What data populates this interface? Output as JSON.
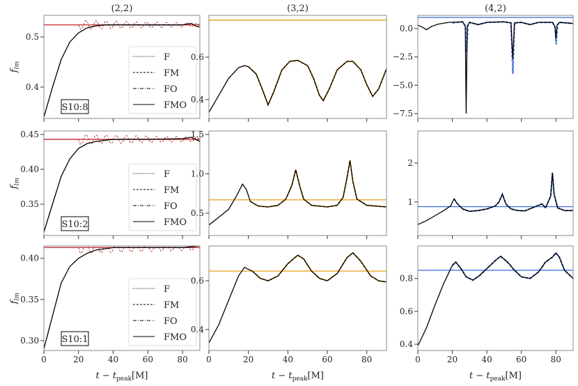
{
  "chart_data": {
    "type": "line",
    "xlabel": "t − t_peak[M]",
    "ylabel": "f_lm",
    "xlim": [
      0,
      90
    ],
    "xticks": [
      0,
      20,
      40,
      60,
      80
    ],
    "column_titles": [
      "(2,2)",
      "(3,2)",
      "(4,2)"
    ],
    "row_labels": [
      "S10:8",
      "S10:2",
      "S10:1"
    ],
    "legend": {
      "placement": "lower-right",
      "entries": [
        {
          "name": "F",
          "style": "dotted"
        },
        {
          "name": "FM",
          "style": "dashed"
        },
        {
          "name": "FO",
          "style": "dashdot"
        },
        {
          "name": "FMO",
          "style": "solid"
        }
      ]
    },
    "colors": {
      "(2,2)": "#c8373a",
      "(3,2)": "#e8a628",
      "(4,2)": "#4a74e0",
      "FMO": "#000000"
    },
    "panels": [
      {
        "row": 0,
        "col": 0,
        "ylim": [
          0.3375,
          0.543
        ],
        "yticks": [
          0.4,
          0.5
        ],
        "yticklabels": [
          "0.4",
          "0.5"
        ],
        "hline": 0.524,
        "oscillation": {
          "start": 20,
          "period": 5.8,
          "amplitude_start": 0.009,
          "amplitude_end": 0.003
        },
        "fmo": [
          [
            0,
            0.34
          ],
          [
            5,
            0.4
          ],
          [
            10,
            0.455
          ],
          [
            15,
            0.49
          ],
          [
            20,
            0.508
          ],
          [
            25,
            0.518
          ],
          [
            30,
            0.522
          ],
          [
            35,
            0.524
          ],
          [
            60,
            0.524
          ],
          [
            80,
            0.524
          ],
          [
            85,
            0.527
          ],
          [
            88,
            0.521
          ],
          [
            90,
            0.52
          ]
        ]
      },
      {
        "row": 0,
        "col": 1,
        "ylim": [
          0.311,
          0.797
        ],
        "yticks": [
          0.4,
          0.6
        ],
        "yticklabels": [
          "0.4",
          "0.6"
        ],
        "hline": 0.774,
        "fmo": [
          [
            0,
            0.34
          ],
          [
            5,
            0.42
          ],
          [
            10,
            0.5
          ],
          [
            15,
            0.55
          ],
          [
            18,
            0.56
          ],
          [
            20,
            0.555
          ],
          [
            24,
            0.52
          ],
          [
            27,
            0.45
          ],
          [
            30,
            0.375
          ],
          [
            33,
            0.44
          ],
          [
            37,
            0.54
          ],
          [
            41,
            0.58
          ],
          [
            45,
            0.585
          ],
          [
            50,
            0.56
          ],
          [
            53,
            0.5
          ],
          [
            56,
            0.42
          ],
          [
            58,
            0.395
          ],
          [
            61,
            0.45
          ],
          [
            65,
            0.54
          ],
          [
            70,
            0.58
          ],
          [
            73,
            0.58
          ],
          [
            77,
            0.54
          ],
          [
            80,
            0.47
          ],
          [
            83,
            0.415
          ],
          [
            86,
            0.45
          ],
          [
            90,
            0.545
          ]
        ]
      },
      {
        "row": 0,
        "col": 2,
        "ylim": [
          -7.93,
          1.17
        ],
        "yticks": [
          0,
          -2.5,
          -5,
          -7.5
        ],
        "yticklabels": [
          "0.0",
          "−2.5",
          "−5.0",
          "−7.5"
        ],
        "hline": 0.98,
        "fmo": [
          [
            0,
            0.3
          ],
          [
            3,
            0.1
          ],
          [
            5,
            -0.1
          ],
          [
            8,
            0.2
          ],
          [
            12,
            0.4
          ],
          [
            18,
            0.55
          ],
          [
            26,
            0.6
          ],
          [
            27.5,
            0.2
          ],
          [
            28,
            -7.5
          ],
          [
            28.6,
            0.2
          ],
          [
            30,
            0.55
          ],
          [
            35,
            0.35
          ],
          [
            40,
            0.55
          ],
          [
            50,
            0.6
          ],
          [
            54,
            0.5
          ],
          [
            55,
            -2.7
          ],
          [
            56,
            0.5
          ],
          [
            60,
            0.55
          ],
          [
            65,
            0.35
          ],
          [
            70,
            0.55
          ],
          [
            78,
            0.55
          ],
          [
            79.5,
            0.2
          ],
          [
            80,
            -0.9
          ],
          [
            80.7,
            0.3
          ],
          [
            82,
            0.55
          ],
          [
            90,
            0.45
          ]
        ],
        "fit": [
          [
            20,
            0.5
          ],
          [
            26,
            0.6
          ],
          [
            27.6,
            0.2
          ],
          [
            28.3,
            -2.1
          ],
          [
            29,
            0.3
          ],
          [
            30,
            0.55
          ],
          [
            35,
            0.35
          ],
          [
            40,
            0.55
          ],
          [
            50,
            0.6
          ],
          [
            54,
            0.5
          ],
          [
            55.1,
            -4.0
          ],
          [
            56,
            0.5
          ],
          [
            60,
            0.55
          ],
          [
            65,
            0.35
          ],
          [
            70,
            0.55
          ],
          [
            78,
            0.55
          ],
          [
            79.6,
            0.1
          ],
          [
            80.2,
            -1.4
          ],
          [
            80.9,
            0.3
          ],
          [
            82,
            0.55
          ],
          [
            90,
            0.45
          ]
        ]
      },
      {
        "row": 1,
        "col": 0,
        "ylim": [
          0.305,
          0.455
        ],
        "yticks": [
          0.35,
          0.4,
          0.45
        ],
        "yticklabels": [
          "0.35",
          "0.40",
          "0.45"
        ],
        "hline": 0.443,
        "oscillation": {
          "start": 20,
          "period": 5.8,
          "amplitude_start": 0.007,
          "amplitude_end": 0.003
        },
        "fmo": [
          [
            0,
            0.31
          ],
          [
            5,
            0.35
          ],
          [
            10,
            0.39
          ],
          [
            15,
            0.415
          ],
          [
            20,
            0.43
          ],
          [
            25,
            0.437
          ],
          [
            30,
            0.44
          ],
          [
            40,
            0.443
          ],
          [
            60,
            0.443
          ],
          [
            80,
            0.444
          ],
          [
            85,
            0.446
          ],
          [
            90,
            0.44
          ]
        ]
      },
      {
        "row": 1,
        "col": 1,
        "ylim": [
          0.217,
          1.544
        ],
        "yticks": [
          0.5,
          1.0,
          1.5
        ],
        "yticklabels": [
          "0.5",
          "1.0",
          "1.5"
        ],
        "hline": 0.67,
        "fmo": [
          [
            0,
            0.35
          ],
          [
            5,
            0.45
          ],
          [
            10,
            0.55
          ],
          [
            14,
            0.72
          ],
          [
            17,
            0.87
          ],
          [
            19,
            0.8
          ],
          [
            21,
            0.65
          ],
          [
            25,
            0.59
          ],
          [
            30,
            0.58
          ],
          [
            35,
            0.6
          ],
          [
            39,
            0.68
          ],
          [
            42,
            0.85
          ],
          [
            44,
            1.05
          ],
          [
            46,
            0.85
          ],
          [
            48,
            0.68
          ],
          [
            52,
            0.6
          ],
          [
            60,
            0.58
          ],
          [
            65,
            0.6
          ],
          [
            68,
            0.7
          ],
          [
            70,
            0.95
          ],
          [
            71.5,
            1.17
          ],
          [
            73,
            0.9
          ],
          [
            75,
            0.68
          ],
          [
            80,
            0.6
          ],
          [
            90,
            0.58
          ]
        ]
      },
      {
        "row": 1,
        "col": 2,
        "ylim": [
          0.14,
          2.82
        ],
        "yticks": [
          1,
          2
        ],
        "yticklabels": [
          "1",
          "2"
        ],
        "hline": 0.88,
        "fmo": [
          [
            0,
            0.42
          ],
          [
            5,
            0.52
          ],
          [
            10,
            0.65
          ],
          [
            15,
            0.78
          ],
          [
            19,
            0.9
          ],
          [
            21,
            1.08
          ],
          [
            23,
            0.95
          ],
          [
            26,
            0.82
          ],
          [
            30,
            0.76
          ],
          [
            35,
            0.78
          ],
          [
            40,
            0.82
          ],
          [
            45,
            0.9
          ],
          [
            47,
            1.0
          ],
          [
            49,
            1.2
          ],
          [
            51,
            0.95
          ],
          [
            54,
            0.82
          ],
          [
            58,
            0.78
          ],
          [
            62,
            0.77
          ],
          [
            68,
            0.88
          ],
          [
            72,
            0.95
          ],
          [
            74,
            0.85
          ],
          [
            77,
            1.15
          ],
          [
            78,
            1.75
          ],
          [
            79,
            1.2
          ],
          [
            81,
            0.85
          ],
          [
            85,
            0.78
          ],
          [
            90,
            0.78
          ]
        ]
      },
      {
        "row": 2,
        "col": 0,
        "ylim": [
          0.288,
          0.415
        ],
        "yticks": [
          0.3,
          0.35,
          0.4
        ],
        "yticklabels": [
          "0.30",
          "0.35",
          "0.40"
        ],
        "hline": 0.413,
        "oscillation": {
          "start": 20,
          "period": 5.8,
          "amplitude_start": 0.007,
          "amplitude_end": 0.003
        },
        "fmo": [
          [
            0,
            0.29
          ],
          [
            5,
            0.33
          ],
          [
            10,
            0.37
          ],
          [
            15,
            0.39
          ],
          [
            20,
            0.4
          ],
          [
            25,
            0.406
          ],
          [
            30,
            0.41
          ],
          [
            40,
            0.413
          ],
          [
            80,
            0.413
          ],
          [
            85,
            0.414
          ],
          [
            90,
            0.415
          ]
        ]
      },
      {
        "row": 2,
        "col": 1,
        "ylim": [
          0.314,
          0.743
        ],
        "yticks": [
          0.4,
          0.6
        ],
        "yticklabels": [
          "0.4",
          "0.6"
        ],
        "hline": 0.64,
        "fmo": [
          [
            0,
            0.345
          ],
          [
            5,
            0.42
          ],
          [
            10,
            0.52
          ],
          [
            15,
            0.62
          ],
          [
            18,
            0.655
          ],
          [
            22,
            0.64
          ],
          [
            26,
            0.61
          ],
          [
            30,
            0.6
          ],
          [
            35,
            0.62
          ],
          [
            40,
            0.67
          ],
          [
            45,
            0.705
          ],
          [
            48,
            0.69
          ],
          [
            52,
            0.64
          ],
          [
            56,
            0.61
          ],
          [
            60,
            0.6
          ],
          [
            65,
            0.63
          ],
          [
            70,
            0.695
          ],
          [
            73,
            0.715
          ],
          [
            77,
            0.68
          ],
          [
            82,
            0.62
          ],
          [
            86,
            0.6
          ],
          [
            90,
            0.595
          ]
        ]
      },
      {
        "row": 2,
        "col": 2,
        "ylim": [
          0.362,
          0.998
        ],
        "yticks": [
          0.4,
          0.6,
          0.8
        ],
        "yticklabels": [
          "0.4",
          "0.6",
          "0.8"
        ],
        "hline": 0.85,
        "fmo": [
          [
            0,
            0.39
          ],
          [
            5,
            0.5
          ],
          [
            10,
            0.64
          ],
          [
            15,
            0.77
          ],
          [
            20,
            0.88
          ],
          [
            22,
            0.9
          ],
          [
            25,
            0.86
          ],
          [
            28,
            0.81
          ],
          [
            32,
            0.79
          ],
          [
            36,
            0.82
          ],
          [
            40,
            0.86
          ],
          [
            45,
            0.91
          ],
          [
            48,
            0.935
          ],
          [
            52,
            0.9
          ],
          [
            56,
            0.85
          ],
          [
            60,
            0.81
          ],
          [
            65,
            0.8
          ],
          [
            70,
            0.84
          ],
          [
            74,
            0.9
          ],
          [
            78,
            0.93
          ],
          [
            80,
            0.955
          ],
          [
            82,
            0.93
          ],
          [
            85,
            0.85
          ],
          [
            90,
            0.8
          ]
        ]
      }
    ]
  }
}
